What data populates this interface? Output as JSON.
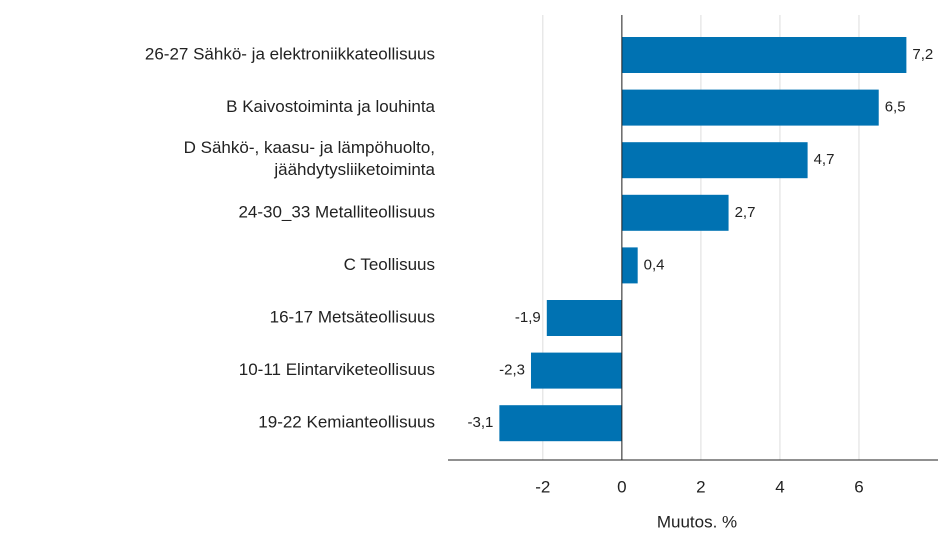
{
  "chart_data": {
    "type": "barh",
    "categories": [
      "26-27 Sähkö- ja elektroniikkateollisuus",
      "B Kaivostoiminta ja louhinta",
      "D Sähkö-, kaasu- ja lämpöhuolto,\njäähdytysliiketoiminta",
      "24-30_33 Metalliteollisuus",
      "C Teollisuus",
      "16-17 Metsäteollisuus",
      "10-11 Elintarviketeollisuus",
      "19-22 Kemianteollisuus"
    ],
    "values": [
      7.2,
      6.5,
      4.7,
      2.7,
      0.4,
      -1.9,
      -2.3,
      -3.1
    ],
    "value_labels": [
      "7,2",
      "6,5",
      "4,7",
      "2,7",
      "0,4",
      "-1,9",
      "-2,3",
      "-3,1"
    ],
    "color": "#0072b2",
    "xlabel": "Muutos. %",
    "xlim": [
      -4.4,
      8
    ],
    "xticks": [
      -2,
      0,
      2,
      4,
      6
    ],
    "grid": true
  }
}
